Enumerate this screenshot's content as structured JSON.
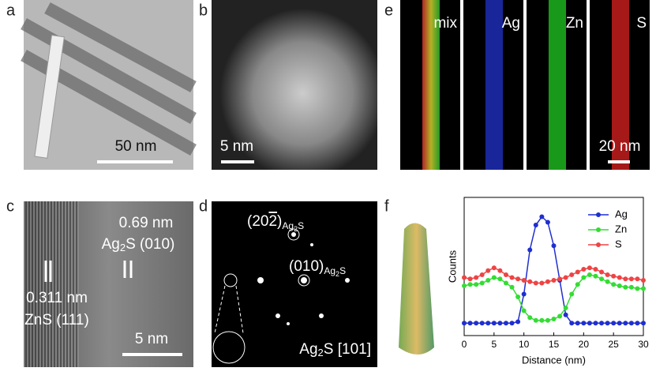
{
  "panels": {
    "a": {
      "label": "a",
      "scale": "50 nm"
    },
    "b": {
      "label": "b",
      "scale": "5 nm"
    },
    "c": {
      "label": "c",
      "spacing1": "0.69 nm",
      "phase1": {
        "main": "Ag",
        "sub": "2",
        "rest": "S (010)"
      },
      "spacing2": "0.311 nm",
      "phase2": "ZnS (111)",
      "scale": "5 nm"
    },
    "d": {
      "label": "d",
      "spot1": {
        "main": "(20",
        "bar": "2",
        "close": ")",
        "sub": "Ag",
        "sub2": "2",
        "subrest": "S"
      },
      "spot2": {
        "main": "(010)",
        "sub": "Ag",
        "sub2": "2",
        "subrest": "S"
      },
      "zone": {
        "main": "Ag",
        "sub": "2",
        "rest": "S [101]"
      }
    },
    "e": {
      "label": "e",
      "maps": [
        "mix",
        "Ag",
        "Zn",
        "S"
      ],
      "scale": "20 nm"
    },
    "f": {
      "label": "f"
    }
  },
  "chart_data": {
    "type": "line",
    "x_label": "Distance (nm)",
    "y_label": "Counts",
    "x": [
      0,
      1,
      2,
      3,
      4,
      5,
      6,
      7,
      8,
      9,
      10,
      11,
      12,
      13,
      14,
      15,
      16,
      17,
      18,
      19,
      20,
      21,
      22,
      23,
      24,
      25,
      26,
      27,
      28,
      29,
      30
    ],
    "series": [
      {
        "name": "Ag",
        "color": "#1f2fd0",
        "values": [
          9,
          9,
          9,
          9,
          9,
          9,
          9,
          9,
          9,
          10,
          30,
          62,
          80,
          86,
          82,
          65,
          40,
          15,
          9,
          9,
          9,
          9,
          9,
          9,
          9,
          9,
          9,
          9,
          9,
          9,
          9
        ]
      },
      {
        "name": "Zn",
        "color": "#33dd33",
        "values": [
          36,
          37,
          37,
          38,
          40,
          42,
          41,
          38,
          35,
          28,
          18,
          13,
          11,
          11,
          11,
          12,
          14,
          20,
          30,
          37,
          42,
          44,
          43,
          41,
          39,
          37,
          36,
          35,
          35,
          34,
          34
        ]
      },
      {
        "name": "S",
        "color": "#ee4444",
        "values": [
          42,
          41,
          42,
          44,
          47,
          49,
          47,
          44,
          42,
          41,
          40,
          39,
          38,
          38,
          39,
          40,
          41,
          42,
          44,
          46,
          48,
          49,
          48,
          46,
          44,
          43,
          42,
          41,
          41,
          41,
          40
        ]
      }
    ],
    "xlim": [
      0,
      30
    ],
    "ylim": [
      0,
      100
    ],
    "xticks": [
      0,
      5,
      10,
      15,
      20,
      25,
      30
    ],
    "legend": "upper-right"
  }
}
